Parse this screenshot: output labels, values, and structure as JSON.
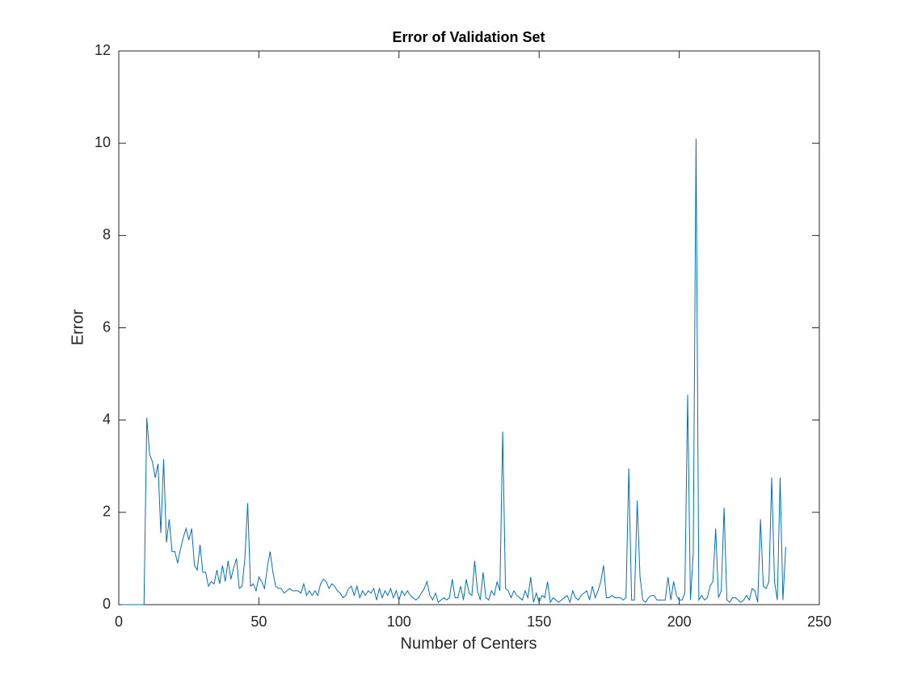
{
  "chart_data": {
    "type": "line",
    "title": "Error of Validation Set",
    "x_label": "Number of Centers",
    "y_label": "Error",
    "x": [
      1,
      2,
      3,
      4,
      5,
      6,
      7,
      8,
      9,
      10,
      11,
      12,
      13,
      14,
      15,
      16,
      17,
      18,
      19,
      20,
      21,
      22,
      23,
      24,
      25,
      26,
      27,
      28,
      29,
      30,
      31,
      32,
      33,
      34,
      35,
      36,
      37,
      38,
      39,
      40,
      41,
      42,
      43,
      44,
      45,
      46,
      47,
      48,
      49,
      50,
      51,
      52,
      53,
      54,
      55,
      56,
      57,
      58,
      59,
      60,
      61,
      62,
      63,
      64,
      65,
      66,
      67,
      68,
      69,
      70,
      71,
      72,
      73,
      74,
      75,
      76,
      77,
      78,
      79,
      80,
      81,
      82,
      83,
      84,
      85,
      86,
      87,
      88,
      89,
      90,
      91,
      92,
      93,
      94,
      95,
      96,
      97,
      98,
      99,
      100,
      101,
      102,
      103,
      104,
      105,
      106,
      107,
      108,
      109,
      110,
      111,
      112,
      113,
      114,
      115,
      116,
      117,
      118,
      119,
      120,
      121,
      122,
      123,
      124,
      125,
      126,
      127,
      128,
      129,
      130,
      131,
      132,
      133,
      134,
      135,
      136,
      137,
      138,
      139,
      140,
      141,
      142,
      143,
      144,
      145,
      146,
      147,
      148,
      149,
      150,
      151,
      152,
      153,
      154,
      155,
      156,
      157,
      158,
      159,
      160,
      161,
      162,
      163,
      164,
      165,
      166,
      167,
      168,
      169,
      170,
      171,
      172,
      173,
      174,
      175,
      176,
      177,
      178,
      179,
      180,
      181,
      182,
      183,
      184,
      185,
      186,
      187,
      188,
      189,
      190,
      191,
      192,
      193,
      194,
      195,
      196,
      197,
      198,
      199,
      200,
      201,
      202,
      203,
      204,
      205,
      206,
      207,
      208,
      209,
      210,
      211,
      212,
      213,
      214,
      215,
      216,
      217,
      218,
      219,
      220,
      221,
      222,
      223,
      224,
      225,
      226,
      227,
      228,
      229,
      230,
      231,
      232,
      233,
      234,
      235,
      236,
      237,
      238
    ],
    "series": [
      {
        "name": "Error",
        "color": "#0072bd",
        "values": [
          0,
          0,
          0,
          0,
          0,
          0,
          0,
          0,
          0,
          4.05,
          3.25,
          3.1,
          2.75,
          3.05,
          1.55,
          3.15,
          1.35,
          1.85,
          1.15,
          1.15,
          0.9,
          1.2,
          1.45,
          1.65,
          1.4,
          1.65,
          0.85,
          0.75,
          1.3,
          0.7,
          0.7,
          0.4,
          0.5,
          0.45,
          0.75,
          0.45,
          0.85,
          0.5,
          0.95,
          0.55,
          0.8,
          1.0,
          0.35,
          0.4,
          1.0,
          2.2,
          0.4,
          0.45,
          0.3,
          0.6,
          0.5,
          0.35,
          0.8,
          1.15,
          0.7,
          0.4,
          0.35,
          0.35,
          0.25,
          0.3,
          0.35,
          0.3,
          0.3,
          0.3,
          0.25,
          0.45,
          0.2,
          0.3,
          0.2,
          0.3,
          0.2,
          0.45,
          0.55,
          0.5,
          0.35,
          0.45,
          0.4,
          0.3,
          0.25,
          0.15,
          0.2,
          0.35,
          0.4,
          0.2,
          0.4,
          0.15,
          0.3,
          0.2,
          0.3,
          0.25,
          0.35,
          0.1,
          0.35,
          0.15,
          0.3,
          0.2,
          0.35,
          0.15,
          0.3,
          0.1,
          0.3,
          0.2,
          0.3,
          0.2,
          0.15,
          0.1,
          0.15,
          0.25,
          0.35,
          0.5,
          0.2,
          0.1,
          0.25,
          0.05,
          0.1,
          0.15,
          0.1,
          0.15,
          0.55,
          0.15,
          0.15,
          0.4,
          0.1,
          0.55,
          0.25,
          0.2,
          0.95,
          0.3,
          0.1,
          0.7,
          0.15,
          0.1,
          0.3,
          0.2,
          0.5,
          0.3,
          3.75,
          0.35,
          0.3,
          0.15,
          0.3,
          0.2,
          0.15,
          0.1,
          0.3,
          0.15,
          0.6,
          0.05,
          0.25,
          0.05,
          0.2,
          0.15,
          0.5,
          0.05,
          0.15,
          0.1,
          0.05,
          0.1,
          0.15,
          0.2,
          0.05,
          0.3,
          0.15,
          0.1,
          0.2,
          0.25,
          0.3,
          0.1,
          0.4,
          0.15,
          0.3,
          0.5,
          0.85,
          0.15,
          0.15,
          0.2,
          0.15,
          0.15,
          0.15,
          0.1,
          0.15,
          2.95,
          0.1,
          0.1,
          2.25,
          0.6,
          0.1,
          0.05,
          0.15,
          0.2,
          0.2,
          0.1,
          0.1,
          0.1,
          0.1,
          0.6,
          0.1,
          0.5,
          0.2,
          0.1,
          0.1,
          0.25,
          4.55,
          0.1,
          1.1,
          10.1,
          0.1,
          0.2,
          0.1,
          0.15,
          0.4,
          0.5,
          1.65,
          0.15,
          0.3,
          2.1,
          0.1,
          0.05,
          0.15,
          0.15,
          0.1,
          0.05,
          0.1,
          0.2,
          0.1,
          0.35,
          0.3,
          0.05,
          1.85,
          0.4,
          0.35,
          0.5,
          2.75,
          0.5,
          0.1,
          2.75,
          0.1,
          1.25
        ]
      }
    ],
    "xlim": [
      0,
      250
    ],
    "xticks": [
      0,
      50,
      100,
      150,
      200,
      250
    ],
    "ylim": [
      0,
      12
    ],
    "yticks": [
      0,
      2,
      4,
      6,
      8,
      10,
      12
    ],
    "grid": false
  }
}
